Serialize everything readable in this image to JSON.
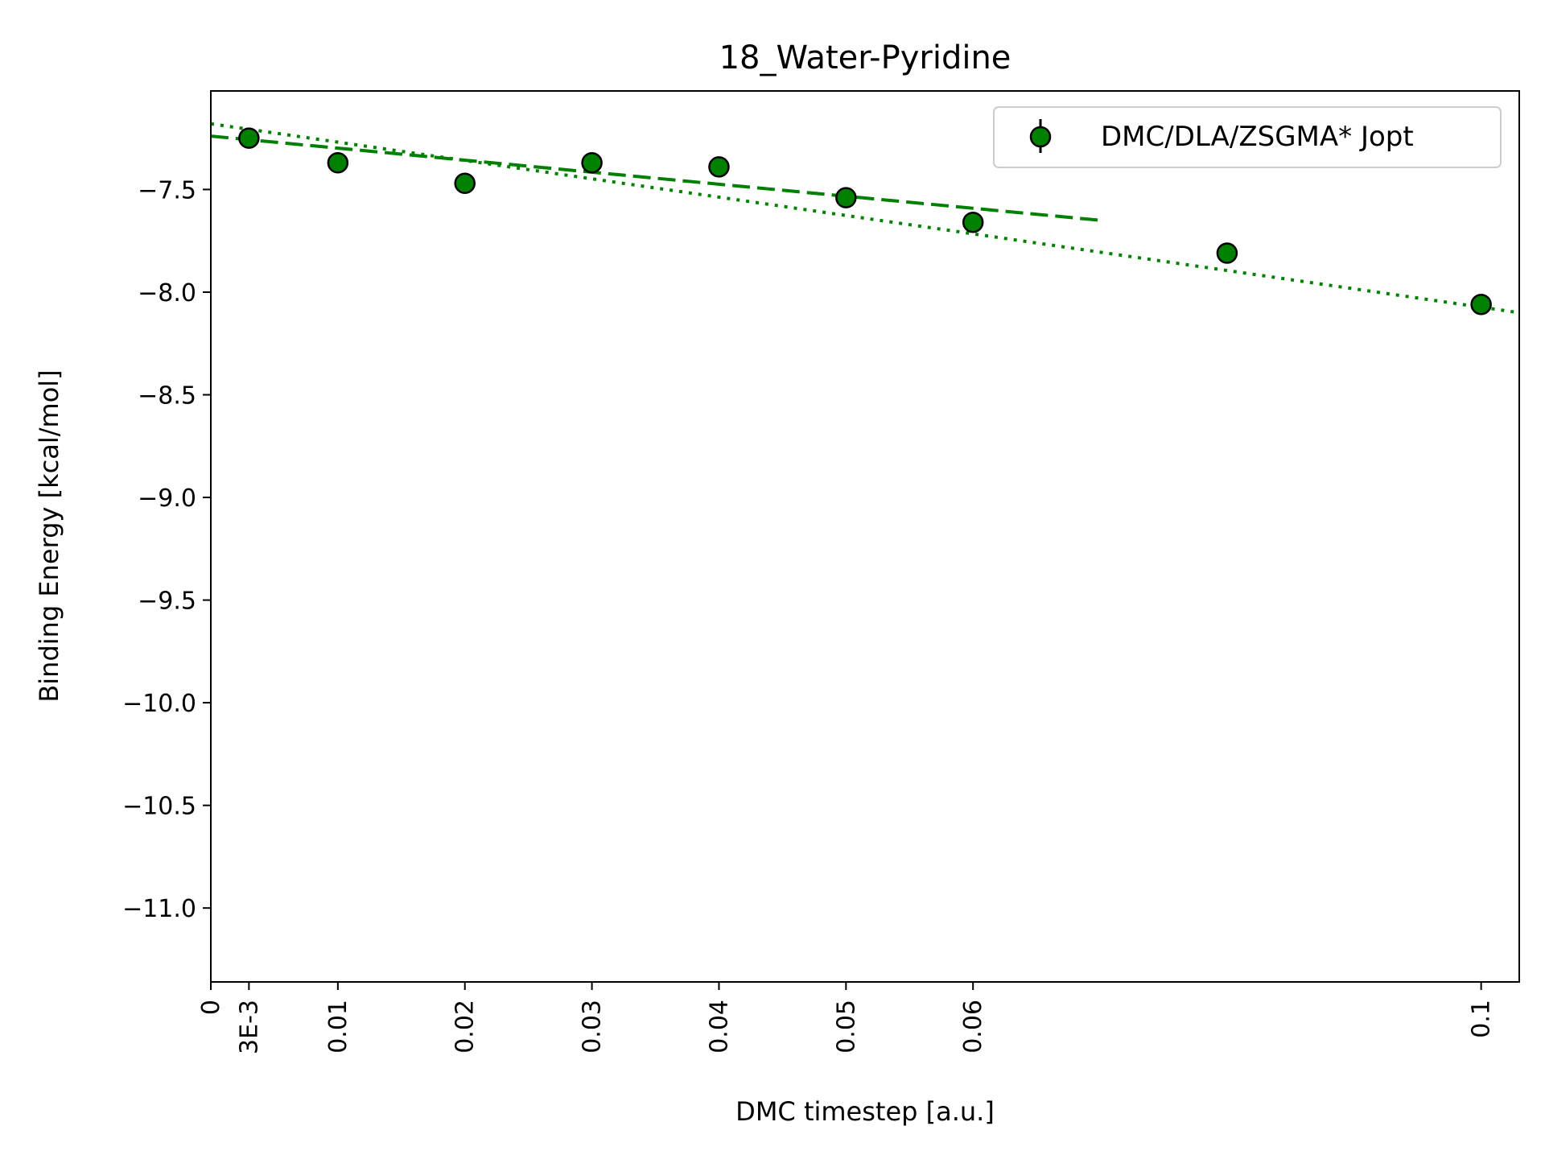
{
  "chart_data": {
    "type": "scatter",
    "title": "18_Water-Pyridine",
    "xlabel": "DMC timestep [a.u.]",
    "ylabel": "Binding Energy [kcal/mol]",
    "xlim": [
      0,
      0.103
    ],
    "ylim": [
      -11.36,
      -7.02
    ],
    "x_ticks": [
      {
        "value": 0,
        "label": "0"
      },
      {
        "value": 0.003,
        "label": "3E-3"
      },
      {
        "value": 0.01,
        "label": "0.01"
      },
      {
        "value": 0.02,
        "label": "0.02"
      },
      {
        "value": 0.03,
        "label": "0.03"
      },
      {
        "value": 0.04,
        "label": "0.04"
      },
      {
        "value": 0.05,
        "label": "0.05"
      },
      {
        "value": 0.06,
        "label": "0.06"
      },
      {
        "value": 0.1,
        "label": "0.1"
      }
    ],
    "y_ticks": [
      {
        "value": -7.5,
        "label": "−7.5"
      },
      {
        "value": -8.0,
        "label": "−8.0"
      },
      {
        "value": -8.5,
        "label": "−8.5"
      },
      {
        "value": -9.0,
        "label": "−9.0"
      },
      {
        "value": -9.5,
        "label": "−9.5"
      },
      {
        "value": -10.0,
        "label": "−10.0"
      },
      {
        "value": -10.5,
        "label": "−10.5"
      },
      {
        "value": -11.0,
        "label": "−11.0"
      }
    ],
    "grid": false,
    "legend_position": "top-right",
    "series": [
      {
        "name": "DMC/DLA/ZSGMA* Jopt",
        "color": "#008000",
        "edge_color": "#000000",
        "x": [
          0.003,
          0.01,
          0.02,
          0.03,
          0.04,
          0.05,
          0.06,
          0.08,
          0.1
        ],
        "y": [
          -7.25,
          -7.37,
          -7.47,
          -7.37,
          -7.39,
          -7.54,
          -7.66,
          -7.81,
          -8.06
        ],
        "yerr": [
          0.03,
          0.03,
          0.05,
          0.03,
          0.03,
          0.03,
          0.03,
          0.04,
          0.04
        ]
      }
    ],
    "fit_lines": [
      {
        "style": "dashed",
        "color": "#008000",
        "x": [
          0,
          0.07
        ],
        "y": [
          -7.24,
          -7.65
        ]
      },
      {
        "style": "dotted",
        "color": "#008000",
        "x": [
          0,
          0.103
        ],
        "y": [
          -7.18,
          -8.1
        ]
      }
    ]
  }
}
